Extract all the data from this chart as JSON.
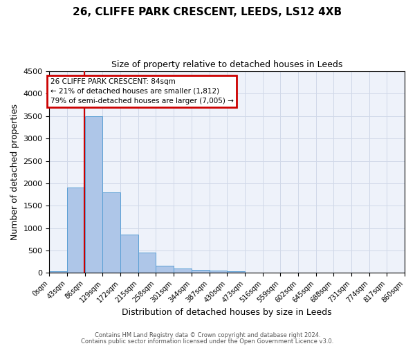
{
  "title1": "26, CLIFFE PARK CRESCENT, LEEDS, LS12 4XB",
  "title2": "Size of property relative to detached houses in Leeds",
  "xlabel": "Distribution of detached houses by size in Leeds",
  "ylabel": "Number of detached properties",
  "annotation_line1": "26 CLIFFE PARK CRESCENT: 84sqm",
  "annotation_line2": "← 21% of detached houses are smaller (1,812)",
  "annotation_line3": "79% of semi-detached houses are larger (7,005) →",
  "property_size": 84,
  "bin_edges": [
    0,
    43,
    86,
    129,
    172,
    215,
    258,
    301,
    344,
    387,
    430,
    473,
    516,
    559,
    602,
    645,
    688,
    731,
    774,
    817,
    860
  ],
  "bar_heights": [
    30,
    1900,
    3500,
    1800,
    850,
    450,
    160,
    100,
    60,
    50,
    40,
    10,
    0,
    0,
    0,
    0,
    0,
    0,
    0,
    0
  ],
  "bar_color": "#aec6e8",
  "bar_edge_color": "#5a9fd4",
  "vline_color": "#cc0000",
  "annotation_box_color": "#cc0000",
  "grid_color": "#d0d8e8",
  "background_color": "#eef2fa",
  "ylim": [
    0,
    4500
  ],
  "yticks": [
    0,
    500,
    1000,
    1500,
    2000,
    2500,
    3000,
    3500,
    4000,
    4500
  ],
  "footer1": "Contains HM Land Registry data © Crown copyright and database right 2024.",
  "footer2": "Contains public sector information licensed under the Open Government Licence v3.0."
}
